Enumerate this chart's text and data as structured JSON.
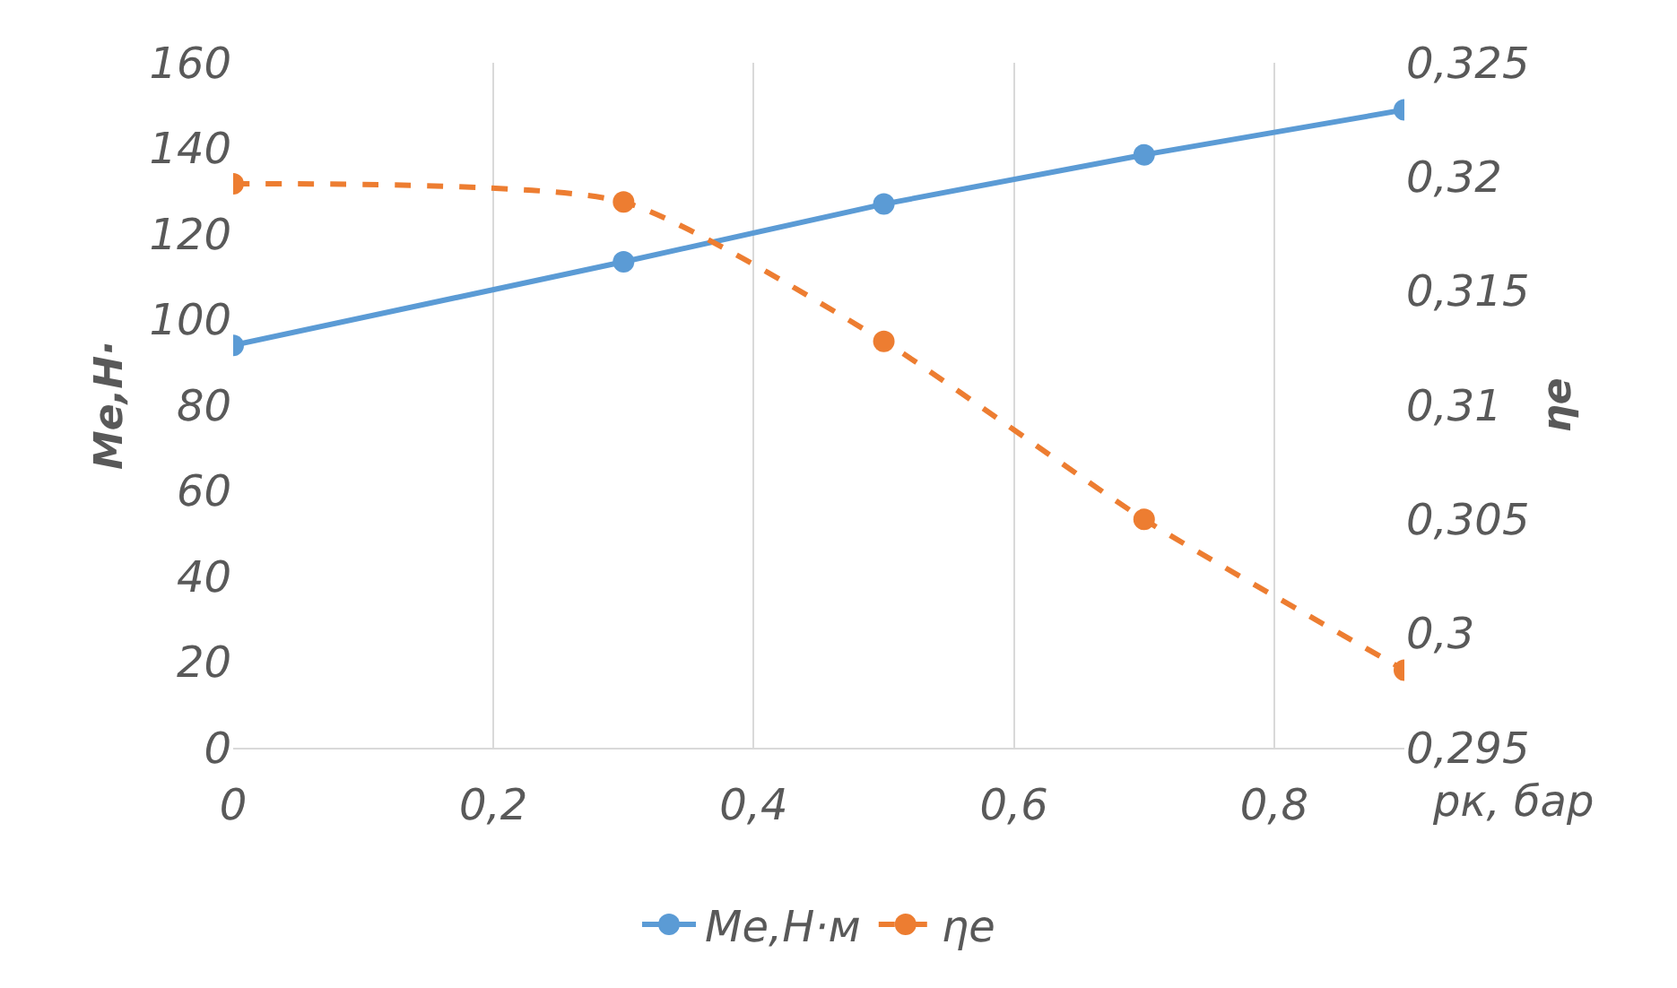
{
  "chart_data": {
    "type": "line",
    "xlabel": "рк, бар",
    "ylabel": "Me,Н·",
    "y2label": "ηe",
    "x": [
      0,
      0.3,
      0.5,
      0.7,
      0.9
    ],
    "series": [
      {
        "name": "Me,Н·м",
        "color": "#5b9bd5",
        "values": [
          94,
          113.5,
          127,
          138.5,
          149
        ],
        "line_style": "solid"
      },
      {
        "name": "ηe",
        "color": "#ed7d31",
        "values": [
          0.3197,
          0.3189,
          0.3128,
          0.305,
          0.2984
        ],
        "axis": "y2",
        "line_style": "dashed"
      }
    ],
    "xlim": [
      0,
      0.9
    ],
    "xticks": [
      0,
      {
        "value": 0.2,
        "label": "0,2"
      },
      {
        "value": 0.4,
        "label": "0,4"
      },
      {
        "value": 0.6,
        "label": "0,6"
      },
      {
        "value": 0.8,
        "label": "0,8"
      }
    ],
    "ylim": [
      0,
      160
    ],
    "yticks": [
      0,
      20,
      40,
      60,
      80,
      100,
      120,
      140,
      160
    ],
    "y2lim": [
      0.295,
      0.325
    ],
    "y2ticks": [
      {
        "value": 0.295,
        "label": "0,295"
      },
      {
        "value": 0.3,
        "label": "0,3"
      },
      {
        "value": 0.305,
        "label": "0,305"
      },
      {
        "value": 0.31,
        "label": "0,31"
      },
      {
        "value": 0.315,
        "label": "0,315"
      },
      {
        "value": 0.32,
        "label": "0,32"
      },
      {
        "value": 0.325,
        "label": "0,325"
      }
    ],
    "grid": "x",
    "legend": "bottom",
    "marker": "circle"
  }
}
